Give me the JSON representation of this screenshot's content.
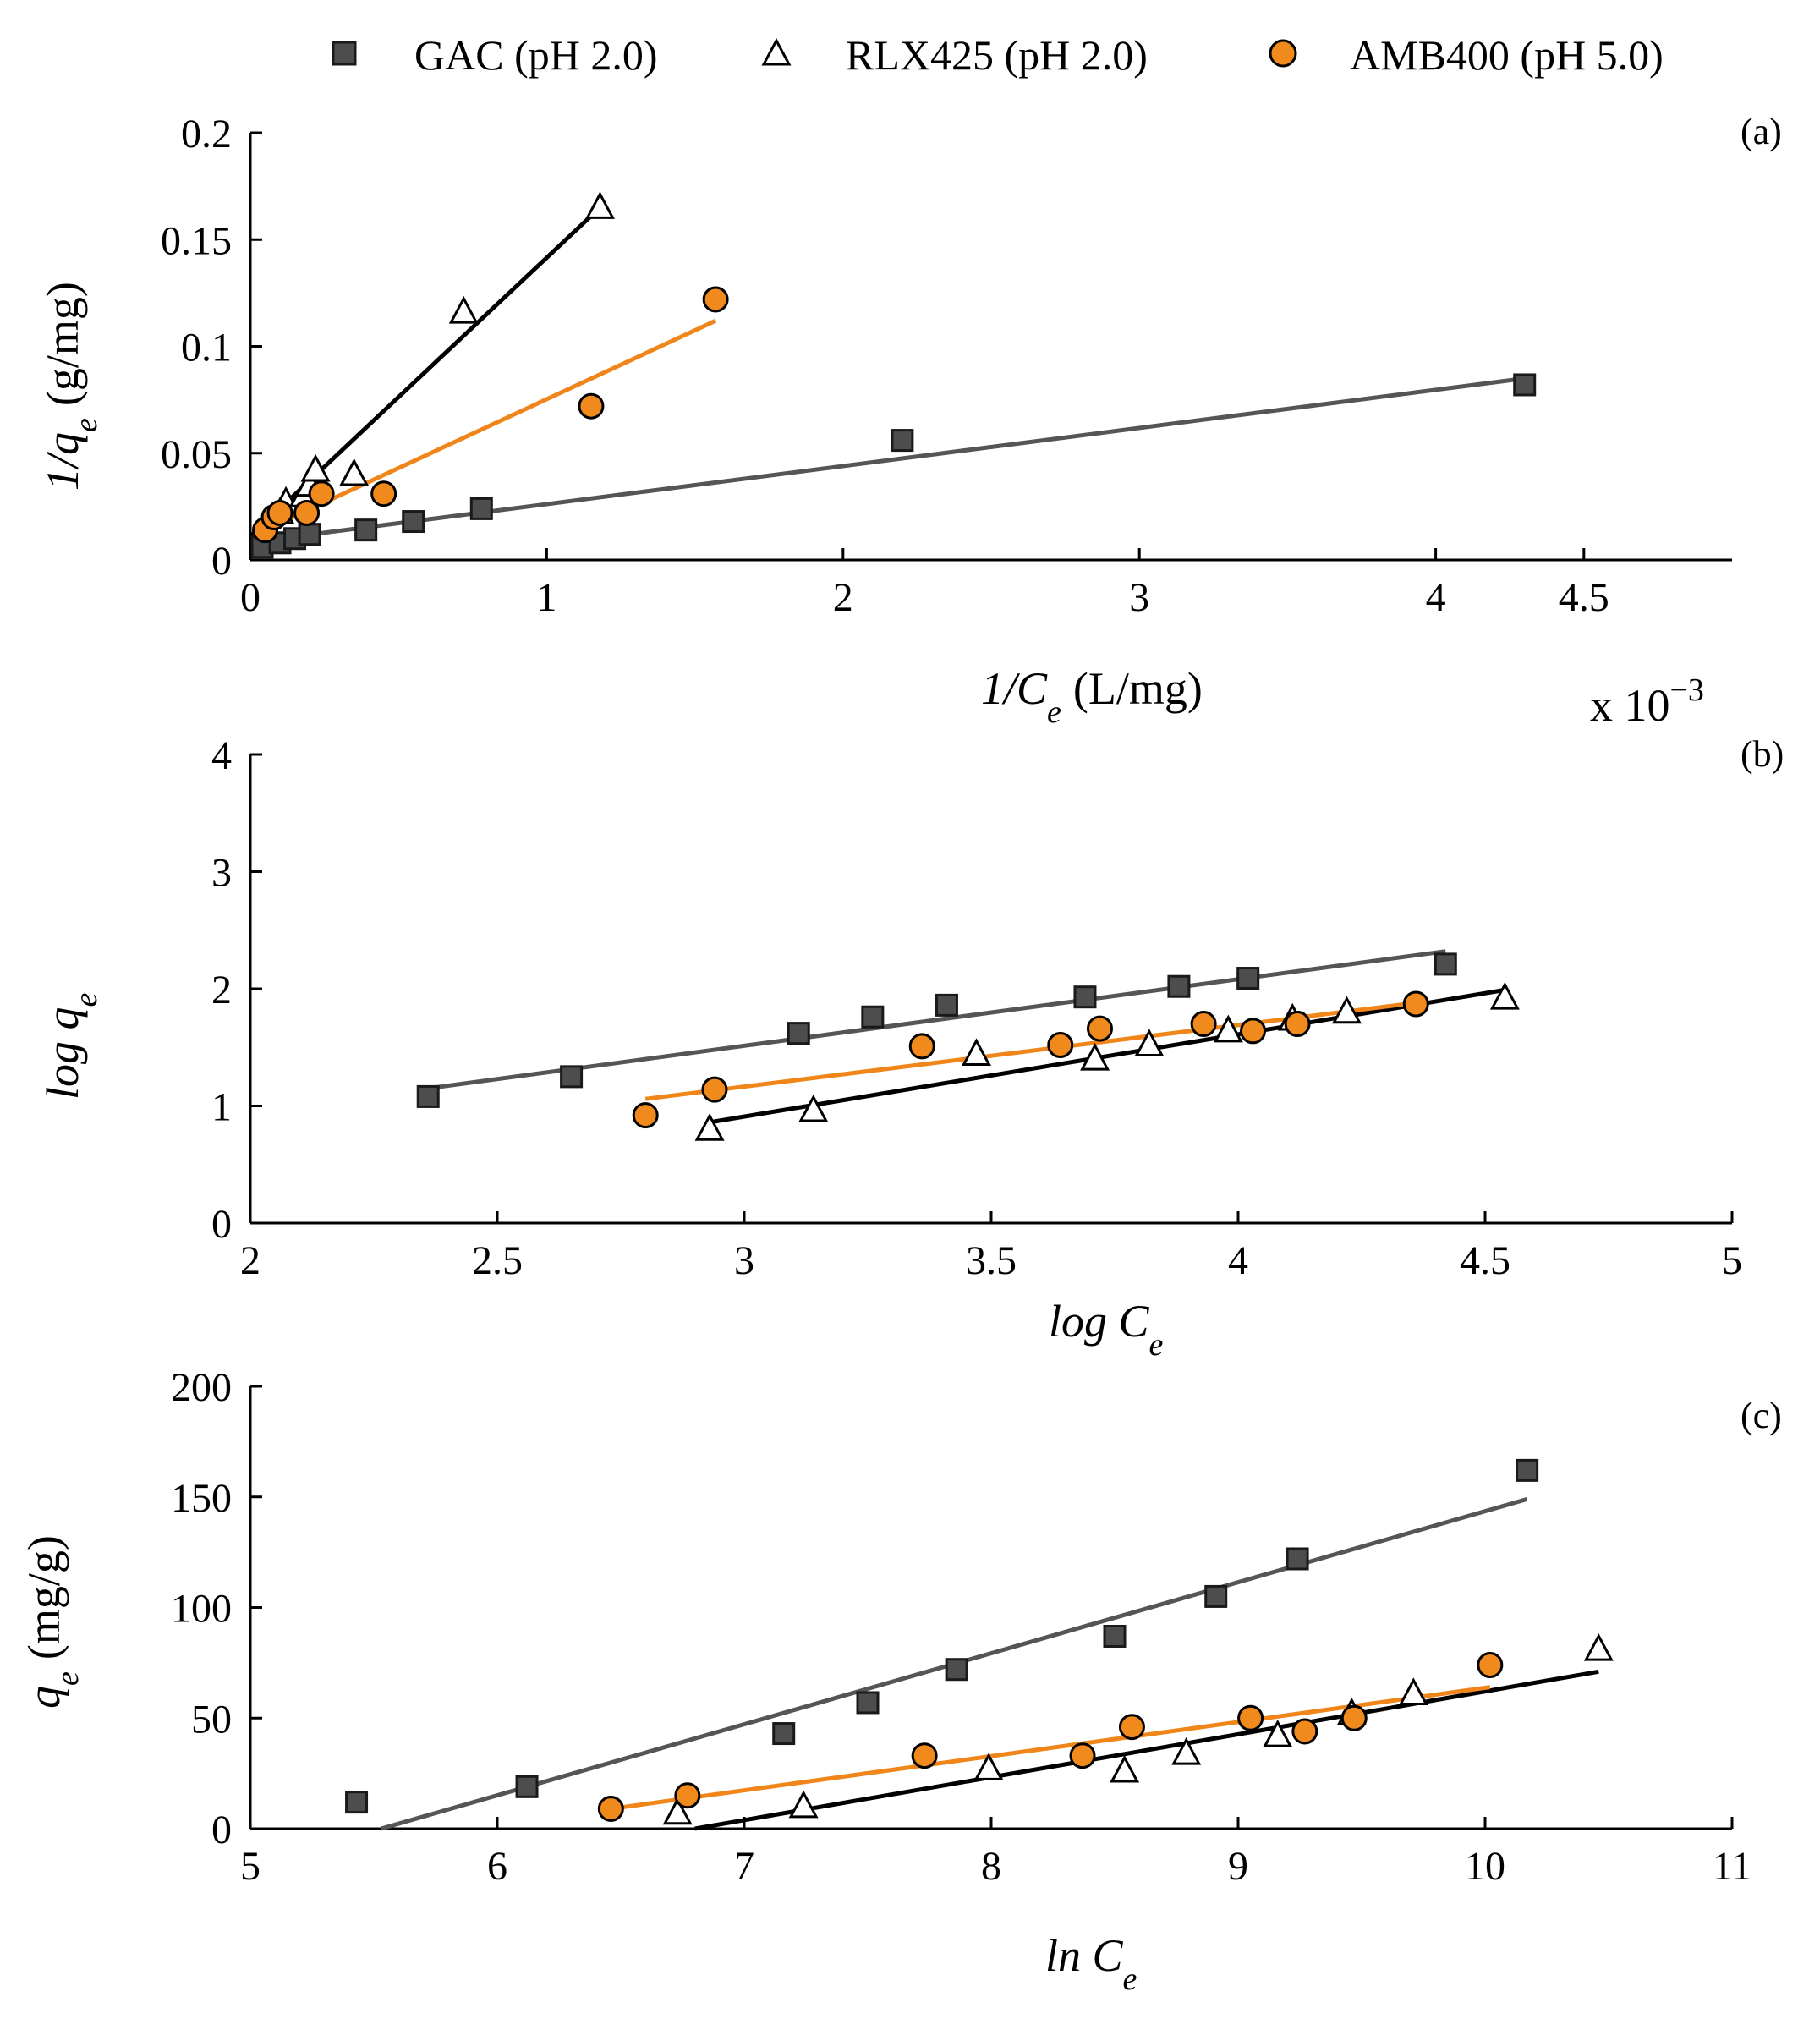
{
  "legend": {
    "items": [
      {
        "label": "GAC (pH 2.0)",
        "marker": "square",
        "fill": "#4d4d4d",
        "stroke": "#1a1a1a"
      },
      {
        "label": "RLX425 (pH 2.0)",
        "marker": "triangle",
        "fill": "#ffffff",
        "stroke": "#000000"
      },
      {
        "label": "AMB400 (pH 5.0)",
        "marker": "circle",
        "fill": "#f18a1c",
        "stroke": "#000000"
      }
    ]
  },
  "colors": {
    "gac_line": "#555555",
    "rlx_line": "#000000",
    "amb_line": "#f0861a",
    "gac_marker": "#4d4d4d",
    "amb_marker": "#f18a1c"
  },
  "chart_data": [
    {
      "type": "scatter",
      "panel": "(a)",
      "xlabel_main": "1/C",
      "xlabel_sub": "e",
      "xlabel_unit": "(L/mg)",
      "ylabel_main": "1/q",
      "ylabel_sub": "e",
      "ylabel_unit": "(g/mg)",
      "x_multiplier": "x 10",
      "x_multiplier_exp": "−3",
      "xlim": [
        0,
        0.005
      ],
      "ylim": [
        0,
        0.2
      ],
      "xticks": [
        0,
        0.001,
        0.002,
        0.003,
        0.004,
        0.0045
      ],
      "xtick_labels": [
        "0",
        "1",
        "2",
        "3",
        "4",
        "4.5"
      ],
      "yticks": [
        0,
        0.05,
        0.1,
        0.15,
        0.2
      ],
      "ytick_labels": [
        "0",
        "0.05",
        "0.1",
        "0.15",
        "0.2"
      ],
      "series": [
        {
          "name": "GAC (pH 2.0)",
          "marker": "square",
          "x": [
            4e-05,
            0.0001,
            0.00015,
            0.0002,
            0.00039,
            0.00055,
            0.00078,
            0.0022,
            0.0043
          ],
          "y": [
            0.006,
            0.008,
            0.01,
            0.012,
            0.014,
            0.018,
            0.024,
            0.056,
            0.082
          ],
          "fit": {
            "x": [
              4e-05,
              0.0043
            ],
            "y": [
              0.009,
              0.085
            ]
          }
        },
        {
          "name": "RLX425 (pH 2.0)",
          "marker": "triangle",
          "x": [
            5e-05,
            0.0001,
            0.00012,
            0.00018,
            0.0002,
            0.00022,
            0.00035,
            0.00072,
            0.00118
          ],
          "y": [
            0.015,
            0.022,
            0.027,
            0.03,
            0.035,
            0.042,
            0.04,
            0.116,
            0.165
          ],
          "fit": {
            "x": [
              0.0,
              0.00118
            ],
            "y": [
              0.011,
              0.165
            ]
          }
        },
        {
          "name": "AMB400 (pH 5.0)",
          "marker": "circle",
          "x": [
            5e-05,
            8e-05,
            0.0001,
            0.00019,
            0.00024,
            0.00045,
            0.00115,
            0.00157
          ],
          "y": [
            0.014,
            0.02,
            0.022,
            0.022,
            0.031,
            0.031,
            0.072,
            0.122
          ],
          "fit": {
            "x": [
              5e-05,
              0.00157
            ],
            "y": [
              0.014,
              0.112
            ]
          }
        }
      ]
    },
    {
      "type": "scatter",
      "panel": "(b)",
      "xlabel_main": "log C",
      "xlabel_sub": "e",
      "ylabel_main": "log q",
      "ylabel_sub": "e",
      "xlim": [
        2,
        5
      ],
      "ylim": [
        0,
        4
      ],
      "xticks": [
        2,
        2.5,
        3,
        3.5,
        4,
        4.5,
        5
      ],
      "xtick_labels": [
        "2",
        "2.5",
        "3",
        "3.5",
        "4",
        "4.5",
        "5"
      ],
      "yticks": [
        0,
        1,
        2,
        3,
        4
      ],
      "ytick_labels": [
        "0",
        "1",
        "2",
        "3",
        "4"
      ],
      "series": [
        {
          "name": "GAC (pH 2.0)",
          "marker": "square",
          "x": [
            2.36,
            2.65,
            3.11,
            3.26,
            3.41,
            3.69,
            3.88,
            4.02,
            4.42
          ],
          "y": [
            1.08,
            1.25,
            1.62,
            1.76,
            1.86,
            1.93,
            2.02,
            2.09,
            2.21
          ],
          "fit": {
            "x": [
              2.36,
              4.42
            ],
            "y": [
              1.15,
              2.32
            ]
          }
        },
        {
          "name": "RLX425 (pH 2.0)",
          "marker": "triangle",
          "x": [
            2.93,
            3.14,
            3.47,
            3.71,
            3.82,
            3.98,
            4.11,
            4.22,
            4.54
          ],
          "y": [
            0.8,
            0.96,
            1.44,
            1.4,
            1.52,
            1.64,
            1.74,
            1.8,
            1.92
          ],
          "fit": {
            "x": [
              2.93,
              4.54
            ],
            "y": [
              0.86,
              1.99
            ]
          }
        },
        {
          "name": "AMB400 (pH 5.0)",
          "marker": "circle",
          "x": [
            2.8,
            2.94,
            3.36,
            3.64,
            3.72,
            3.93,
            4.03,
            4.12,
            4.36
          ],
          "y": [
            0.92,
            1.14,
            1.51,
            1.52,
            1.66,
            1.7,
            1.64,
            1.7,
            1.87
          ],
          "fit": {
            "x": [
              2.8,
              4.36
            ],
            "y": [
              1.06,
              1.88
            ]
          }
        }
      ]
    },
    {
      "type": "scatter",
      "panel": "(c)",
      "xlabel_main": "ln C",
      "xlabel_sub": "e",
      "ylabel_main": "q",
      "ylabel_sub": "e",
      "ylabel_unit": "(mg/g)",
      "xlim": [
        5,
        11
      ],
      "ylim": [
        0,
        200
      ],
      "xticks": [
        5,
        6,
        7,
        8,
        9,
        10,
        11
      ],
      "xtick_labels": [
        "5",
        "6",
        "7",
        "8",
        "9",
        "10",
        "11"
      ],
      "yticks": [
        0,
        50,
        100,
        150,
        200
      ],
      "ytick_labels": [
        "0",
        "50",
        "100",
        "150",
        "200"
      ],
      "series": [
        {
          "name": "GAC (pH 2.0)",
          "marker": "square",
          "x": [
            5.43,
            6.12,
            7.16,
            7.5,
            7.86,
            8.5,
            8.91,
            9.24,
            10.17
          ],
          "y": [
            12,
            19,
            43,
            57,
            72,
            87,
            105,
            122,
            162
          ],
          "fit": {
            "x": [
              5.53,
              10.17
            ],
            "y": [
              0,
              149
            ]
          }
        },
        {
          "name": "RLX425 (pH 2.0)",
          "marker": "triangle",
          "x": [
            6.73,
            7.24,
            7.99,
            8.54,
            8.79,
            9.16,
            9.46,
            9.71,
            10.46
          ],
          "y": [
            7,
            10,
            27,
            26,
            34,
            42,
            52,
            61,
            81
          ],
          "fit": {
            "x": [
              6.8,
              10.46
            ],
            "y": [
              0,
              71
            ]
          }
        },
        {
          "name": "AMB400 (pH 5.0)",
          "marker": "circle",
          "x": [
            6.46,
            6.77,
            7.73,
            8.37,
            8.57,
            9.05,
            9.27,
            9.47,
            10.02
          ],
          "y": [
            9,
            15,
            33,
            33,
            46,
            50,
            44,
            50,
            74
          ],
          "fit": {
            "x": [
              6.46,
              10.02
            ],
            "y": [
              9,
              64
            ]
          }
        }
      ]
    }
  ]
}
